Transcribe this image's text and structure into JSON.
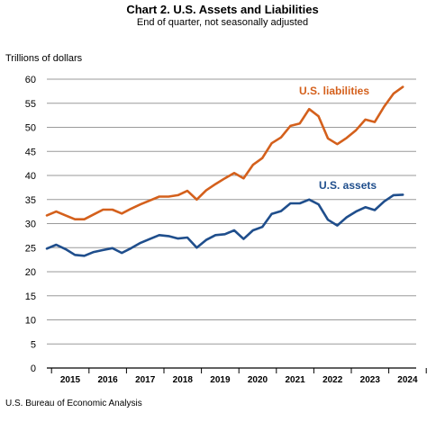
{
  "chart_data": {
    "type": "line",
    "title": "Chart 2. U.S. Assets and Liabilities",
    "subtitle": "End of quarter, not seasonally adjusted",
    "ylabel": "Trillions of dollars",
    "ylim": [
      0,
      60
    ],
    "yticks": [
      0,
      5,
      10,
      15,
      20,
      25,
      30,
      35,
      40,
      45,
      50,
      55,
      60
    ],
    "grid": true,
    "x": [
      "2014 Q4",
      "2015 Q1",
      "2015 Q2",
      "2015 Q3",
      "2015 Q4",
      "2016 Q1",
      "2016 Q2",
      "2016 Q3",
      "2016 Q4",
      "2017 Q1",
      "2017 Q2",
      "2017 Q3",
      "2017 Q4",
      "2018 Q1",
      "2018 Q2",
      "2018 Q3",
      "2018 Q4",
      "2019 Q1",
      "2019 Q2",
      "2019 Q3",
      "2019 Q4",
      "2020 Q1",
      "2020 Q2",
      "2020 Q3",
      "2020 Q4",
      "2021 Q1",
      "2021 Q2",
      "2021 Q3",
      "2021 Q4",
      "2022 Q1",
      "2022 Q2",
      "2022 Q3",
      "2022 Q4",
      "2023 Q1",
      "2023 Q2",
      "2023 Q3",
      "2023 Q4",
      "2024 Q1",
      "2024 Q2"
    ],
    "year_labels": [
      "2015",
      "2016",
      "2017",
      "2018",
      "2019",
      "2020",
      "2021",
      "2022",
      "2023",
      "2024"
    ],
    "series": [
      {
        "name": "U.S. liabilities",
        "color": "#d4601c",
        "values": [
          31.7,
          32.5,
          31.7,
          30.9,
          30.9,
          31.9,
          32.9,
          32.9,
          32.1,
          33.1,
          34.0,
          34.8,
          35.6,
          35.6,
          35.9,
          36.8,
          35.0,
          36.9,
          38.2,
          39.4,
          40.5,
          39.4,
          42.2,
          43.6,
          46.7,
          47.9,
          50.3,
          50.8,
          53.8,
          52.3,
          47.7,
          46.5,
          47.8,
          49.4,
          51.6,
          51.1,
          54.3,
          57.0,
          58.4
        ]
      },
      {
        "name": "U.S. assets",
        "color": "#1f4e8c",
        "values": [
          24.8,
          25.6,
          24.7,
          23.5,
          23.3,
          24.1,
          24.5,
          24.9,
          23.9,
          24.9,
          26.0,
          26.8,
          27.6,
          27.4,
          26.9,
          27.1,
          25.0,
          26.6,
          27.6,
          27.8,
          28.6,
          26.8,
          28.6,
          29.3,
          32.0,
          32.6,
          34.2,
          34.2,
          35.0,
          34.0,
          30.8,
          29.6,
          31.3,
          32.5,
          33.4,
          32.8,
          34.6,
          35.9,
          36.0
        ]
      }
    ]
  },
  "footer": {
    "source": "U.S. Bureau of Economic Analysis"
  }
}
